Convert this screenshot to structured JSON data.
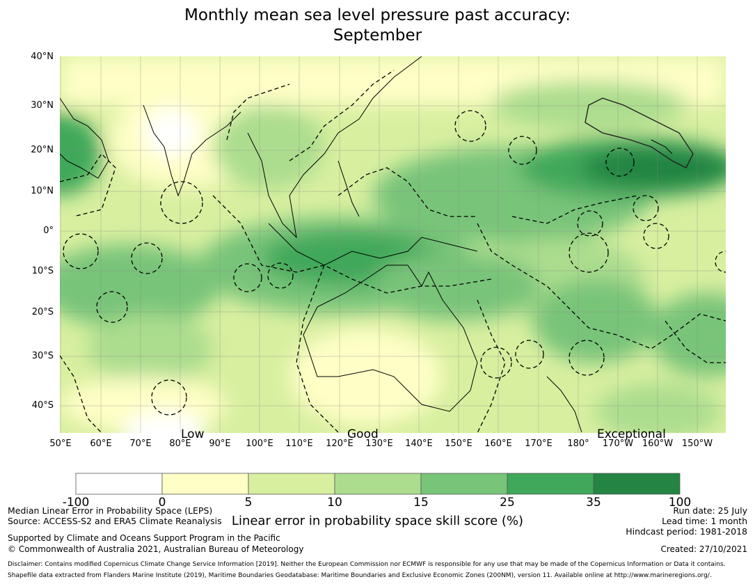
{
  "title": {
    "line1": "Monthly mean sea level pressure past accuracy:",
    "line2": "September"
  },
  "map": {
    "lat_ticks": [
      "40°N",
      "30°N",
      "20°N",
      "10°N",
      "0°",
      "10°S",
      "20°S",
      "30°S",
      "40°S"
    ],
    "lon_ticks": [
      "50°E",
      "60°E",
      "70°E",
      "80°E",
      "90°E",
      "100°E",
      "110°E",
      "120°E",
      "130°E",
      "140°E",
      "150°E",
      "160°E",
      "170°E",
      "180°",
      "170°W",
      "160°W",
      "150°W"
    ],
    "categories": [
      "Low",
      "Good",
      "Exceptional"
    ]
  },
  "colorbar": {
    "ticks": [
      "-100",
      "0",
      "5",
      "10",
      "15",
      "25",
      "35",
      "100"
    ],
    "colors": [
      "#ffffff",
      "#fefec6",
      "#d8efa0",
      "#acdd8e",
      "#78c479",
      "#3fa85a",
      "#238443"
    ],
    "label": "Linear error in probability space skill score (%)"
  },
  "footer": {
    "left1": "Median Linear Error in Probability Space (LEPS)",
    "left2": "Source: ACCESS-S2 and ERA5 Climate Reanalysis",
    "left3": "Supported by Climate and Oceans Support Program in the Pacific",
    "left4": "© Commonwealth of Australia 2021, Australian Bureau of Meteorology",
    "right1": "Run date: 25 July",
    "right2": "Lead time: 1 month",
    "right3": "Hindcast period: 1981-2018",
    "right4": "Created: 27/10/2021",
    "disclaimer": "Disclaimer: Contains modified Copernicus Climate Change Service Information [2019]. Neither the European Commission nor ECMWF is responsible for any use that may be made of the Copernicus Information or Data it contains.",
    "shapefile": "Shapefile data extracted from Flanders Marine Institute (2019), Maritime Boundaries Geodatabase: Maritime Boundaries and Exclusive Economic Zones (200NM), version 11. Available online at http://www.marineregions.org/."
  }
}
